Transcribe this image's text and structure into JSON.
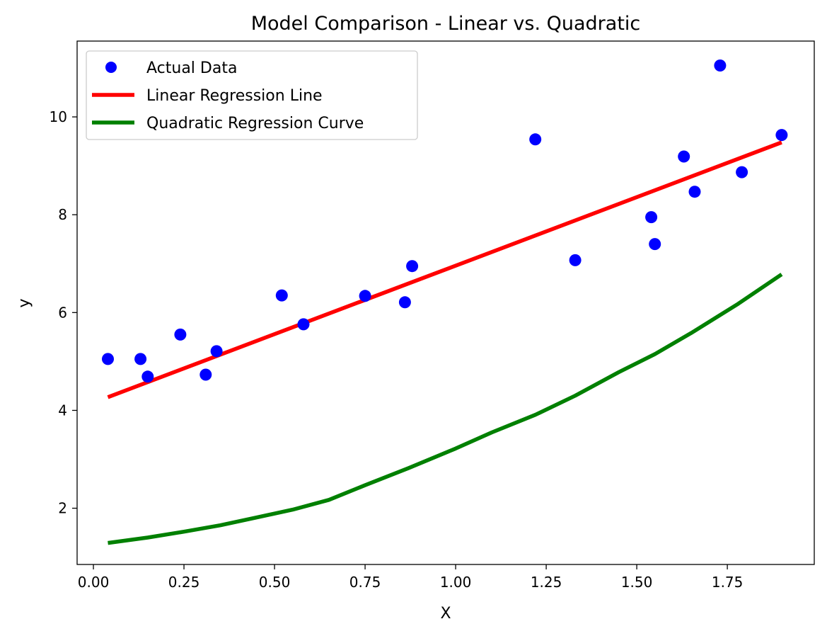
{
  "chart_data": {
    "type": "line",
    "title": "Model Comparison - Linear vs. Quadratic",
    "xlabel": "X",
    "ylabel": "y",
    "xlim": [
      -0.045,
      1.99
    ],
    "ylim": [
      0.85,
      11.55
    ],
    "xticks": [
      0.0,
      0.25,
      0.5,
      0.75,
      1.0,
      1.25,
      1.5,
      1.75
    ],
    "xtick_labels": [
      "0.00",
      "0.25",
      "0.50",
      "0.75",
      "1.00",
      "1.25",
      "1.50",
      "1.75"
    ],
    "yticks": [
      2,
      4,
      6,
      8,
      10
    ],
    "ytick_labels": [
      "2",
      "4",
      "6",
      "8",
      "10"
    ],
    "grid": false,
    "legend": "top-left",
    "series": [
      {
        "name": "Actual Data",
        "kind": "scatter",
        "color": "#0000ff",
        "x": [
          0.04,
          0.13,
          0.15,
          0.24,
          0.31,
          0.34,
          0.52,
          0.58,
          0.75,
          0.86,
          0.88,
          1.22,
          1.33,
          1.54,
          1.55,
          1.63,
          1.66,
          1.73,
          1.79,
          1.9
        ],
        "y": [
          5.05,
          5.05,
          4.69,
          5.55,
          4.73,
          5.21,
          6.35,
          5.76,
          6.34,
          6.21,
          6.95,
          9.54,
          7.07,
          7.95,
          7.4,
          9.19,
          8.47,
          11.05,
          8.87,
          9.63
        ]
      },
      {
        "name": "Linear Regression Line",
        "kind": "line",
        "color": "#ff0000",
        "x": [
          0.04,
          1.9
        ],
        "y": [
          4.27,
          9.48
        ]
      },
      {
        "name": "Quadratic Regression Curve",
        "kind": "line",
        "color": "#008000",
        "x": [
          0.04,
          0.15,
          0.25,
          0.35,
          0.45,
          0.55,
          0.65,
          0.75,
          0.87,
          1.0,
          1.1,
          1.22,
          1.33,
          1.45,
          1.55,
          1.65,
          1.78,
          1.9
        ],
        "y": [
          1.29,
          1.4,
          1.52,
          1.65,
          1.81,
          1.97,
          2.17,
          2.47,
          2.82,
          3.22,
          3.55,
          3.91,
          4.3,
          4.78,
          5.15,
          5.58,
          6.18,
          6.78
        ]
      }
    ]
  }
}
